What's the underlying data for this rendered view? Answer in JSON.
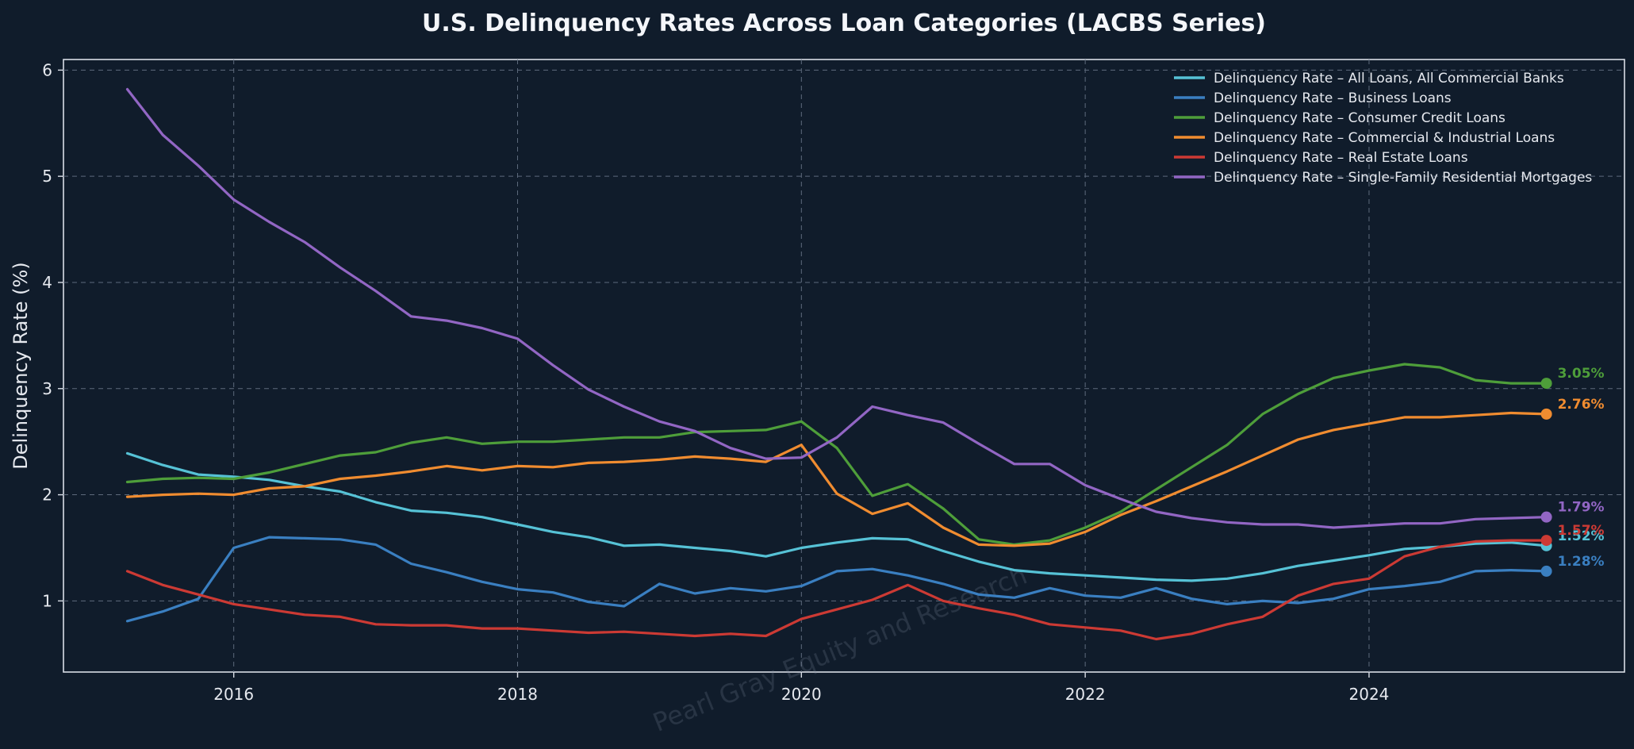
{
  "chart_data": {
    "type": "line",
    "title": "U.S. Delinquency Rates Across Loan Categories (LACBS Series)",
    "xlabel": "",
    "ylabel": "Delinquency Rate (%)",
    "xlim": [
      2014.8,
      2025.8
    ],
    "ylim": [
      0.33,
      6.1
    ],
    "x_ticks": [
      2016,
      2018,
      2020,
      2022,
      2024
    ],
    "y_ticks": [
      1,
      2,
      3,
      4,
      5,
      6
    ],
    "grid": true,
    "legend_position": "top-right",
    "watermark": "Pearl Gray Equity and Research",
    "x": [
      "2015 Q2",
      "2015 Q3",
      "2015 Q4",
      "2016 Q1",
      "2016 Q2",
      "2016 Q3",
      "2016 Q4",
      "2017 Q1",
      "2017 Q2",
      "2017 Q3",
      "2017 Q4",
      "2018 Q1",
      "2018 Q2",
      "2018 Q3",
      "2018 Q4",
      "2019 Q1",
      "2019 Q2",
      "2019 Q3",
      "2019 Q4",
      "2020 Q1",
      "2020 Q2",
      "2020 Q3",
      "2020 Q4",
      "2021 Q1",
      "2021 Q2",
      "2021 Q3",
      "2021 Q4",
      "2022 Q1",
      "2022 Q2",
      "2022 Q3",
      "2022 Q4",
      "2023 Q1",
      "2023 Q2",
      "2023 Q3",
      "2023 Q4",
      "2024 Q1",
      "2024 Q2",
      "2024 Q3",
      "2024 Q4",
      "2025 Q1",
      "2025 Q2"
    ],
    "series": [
      {
        "name": "Delinquency Rate – All Loans, All Commercial Banks",
        "color": "#56c2d6",
        "end_label": "1.52%",
        "values": [
          2.39,
          2.28,
          2.19,
          2.17,
          2.14,
          2.08,
          2.03,
          1.93,
          1.85,
          1.83,
          1.79,
          1.72,
          1.65,
          1.6,
          1.52,
          1.53,
          1.5,
          1.47,
          1.42,
          1.5,
          1.55,
          1.59,
          1.58,
          1.47,
          1.37,
          1.29,
          1.26,
          1.24,
          1.22,
          1.2,
          1.19,
          1.21,
          1.26,
          1.33,
          1.38,
          1.43,
          1.49,
          1.51,
          1.54,
          1.55,
          1.52
        ]
      },
      {
        "name": "Delinquency Rate – Business Loans",
        "color": "#3a7fc1",
        "end_label": "1.28%",
        "values": [
          0.81,
          0.9,
          1.02,
          1.5,
          1.6,
          1.59,
          1.58,
          1.53,
          1.35,
          1.27,
          1.18,
          1.11,
          1.08,
          0.99,
          0.95,
          1.16,
          1.07,
          1.12,
          1.09,
          1.14,
          1.28,
          1.3,
          1.24,
          1.16,
          1.06,
          1.03,
          1.12,
          1.05,
          1.03,
          1.12,
          1.02,
          0.97,
          1.0,
          0.98,
          1.02,
          1.11,
          1.14,
          1.18,
          1.28,
          1.29,
          1.28
        ]
      },
      {
        "name": "Delinquency Rate – Consumer Credit Loans",
        "color": "#4e9e3a",
        "end_label": "3.05%",
        "values": [
          2.12,
          2.15,
          2.16,
          2.15,
          2.21,
          2.29,
          2.37,
          2.4,
          2.49,
          2.54,
          2.48,
          2.5,
          2.5,
          2.52,
          2.54,
          2.54,
          2.59,
          2.6,
          2.61,
          2.69,
          2.44,
          1.99,
          2.1,
          1.87,
          1.58,
          1.53,
          1.57,
          1.69,
          1.84,
          2.05,
          2.26,
          2.47,
          2.76,
          2.95,
          3.1,
          3.17,
          3.23,
          3.2,
          3.08,
          3.05,
          3.05
        ]
      },
      {
        "name": "Delinquency Rate – Commercial & Industrial Loans",
        "color": "#f08c30",
        "end_label": "2.76%",
        "values": [
          1.98,
          2.0,
          2.01,
          2.0,
          2.06,
          2.08,
          2.15,
          2.18,
          2.22,
          2.27,
          2.23,
          2.27,
          2.26,
          2.3,
          2.31,
          2.33,
          2.36,
          2.34,
          2.31,
          2.47,
          2.01,
          1.82,
          1.92,
          1.69,
          1.53,
          1.52,
          1.54,
          1.65,
          1.81,
          1.94,
          2.08,
          2.22,
          2.37,
          2.52,
          2.61,
          2.67,
          2.73,
          2.73,
          2.75,
          2.77,
          2.76
        ]
      },
      {
        "name": "Delinquency Rate – Real Estate Loans",
        "color": "#cc3a34",
        "end_label": "1.57%",
        "values": [
          1.28,
          1.15,
          1.06,
          0.97,
          0.92,
          0.87,
          0.85,
          0.78,
          0.77,
          0.77,
          0.74,
          0.74,
          0.72,
          0.7,
          0.71,
          0.69,
          0.67,
          0.69,
          0.67,
          0.83,
          0.92,
          1.01,
          1.15,
          1.0,
          0.93,
          0.87,
          0.78,
          0.75,
          0.72,
          0.64,
          0.69,
          0.78,
          0.85,
          1.05,
          1.16,
          1.21,
          1.42,
          1.51,
          1.56,
          1.57,
          1.57
        ]
      },
      {
        "name": "Delinquency Rate – Single-Family Residential Mortgages",
        "color": "#9266c4",
        "end_label": "1.79%",
        "values": [
          5.82,
          5.39,
          5.1,
          4.78,
          4.57,
          4.38,
          4.14,
          3.92,
          3.68,
          3.64,
          3.57,
          3.47,
          3.22,
          2.99,
          2.83,
          2.69,
          2.6,
          2.44,
          2.34,
          2.35,
          2.54,
          2.83,
          2.75,
          2.68,
          2.48,
          2.29,
          2.29,
          2.09,
          1.96,
          1.84,
          1.78,
          1.74,
          1.72,
          1.72,
          1.69,
          1.71,
          1.73,
          1.73,
          1.77,
          1.78,
          1.79
        ]
      }
    ]
  }
}
